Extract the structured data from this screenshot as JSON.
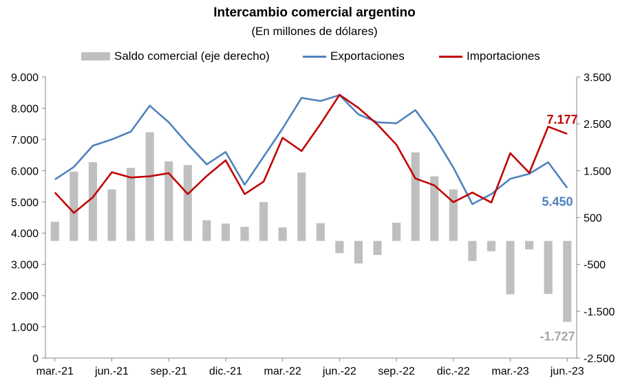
{
  "chart_data": {
    "type": "bar+line",
    "title": "Intercambio comercial argentino",
    "subtitle": "(En millones de dólares)",
    "x_tick_labels": [
      "mar.-21",
      "jun.-21",
      "sep.-21",
      "dic.-21",
      "mar.-22",
      "jun.-22",
      "sep.-22",
      "dic.-22",
      "mar.-23",
      "jun.-23"
    ],
    "months": [
      "mar.-21",
      "abr.-21",
      "may.-21",
      "jun.-21",
      "jul.-21",
      "ago.-21",
      "sep.-21",
      "oct.-21",
      "nov.-21",
      "dic.-21",
      "ene.-22",
      "feb.-22",
      "mar.-22",
      "abr.-22",
      "may.-22",
      "jun.-22",
      "jul.-22",
      "ago.-22",
      "sep.-22",
      "oct.-22",
      "nov.-22",
      "dic.-22",
      "ene.-23",
      "feb.-23",
      "mar.-23",
      "abr.-23",
      "may.-23",
      "jun.-23"
    ],
    "left_axis": {
      "ylim": [
        0,
        9000
      ],
      "ticks": [
        0,
        1000,
        2000,
        3000,
        4000,
        5000,
        6000,
        7000,
        8000,
        9000
      ],
      "tick_labels": [
        "0",
        "1.000",
        "2.000",
        "3.000",
        "4.000",
        "5.000",
        "6.000",
        "7.000",
        "8.000",
        "9.000"
      ]
    },
    "right_axis": {
      "ylim": [
        -2500,
        3500
      ],
      "ticks": [
        -2500,
        -1500,
        -500,
        500,
        1500,
        2500,
        3500
      ],
      "tick_labels": [
        "-2.500",
        "-1.500",
        "-500",
        "500",
        "1.500",
        "2.500",
        "3.500"
      ]
    },
    "series": [
      {
        "name": "Saldo comercial (eje derecho)",
        "type": "bar",
        "axis": "right",
        "color": "#bfbfbf",
        "values": [
          410,
          1480,
          1680,
          1100,
          1560,
          2320,
          1700,
          1620,
          440,
          370,
          300,
          830,
          290,
          1460,
          380,
          -260,
          -480,
          -300,
          390,
          1890,
          1380,
          1100,
          -430,
          -220,
          -1140,
          -180,
          -1130,
          -1727
        ]
      },
      {
        "name": "Exportaciones",
        "type": "line",
        "axis": "left",
        "color": "#4f81bd",
        "values": [
          5720,
          6120,
          6800,
          7000,
          7250,
          8080,
          7550,
          6850,
          6200,
          6600,
          5550,
          6450,
          7350,
          8330,
          8230,
          8420,
          7800,
          7550,
          7520,
          7940,
          7100,
          6100,
          4930,
          5250,
          5740,
          5900,
          6270,
          5450
        ]
      },
      {
        "name": "Importaciones",
        "type": "line",
        "axis": "left",
        "color": "#c00000",
        "values": [
          5300,
          4650,
          5150,
          5950,
          5780,
          5820,
          5920,
          5250,
          5830,
          6330,
          5250,
          5650,
          7050,
          6630,
          7500,
          8430,
          8010,
          7480,
          6830,
          5750,
          5530,
          4990,
          5300,
          4980,
          6560,
          5930,
          7410,
          7177
        ]
      }
    ],
    "data_labels": [
      {
        "series": "Importaciones",
        "text": "7.177",
        "color": "#c00000"
      },
      {
        "series": "Exportaciones",
        "text": "5.450",
        "color": "#4f81bd"
      },
      {
        "series": "Saldo comercial (eje derecho)",
        "text": "-1.727",
        "color": "#a6a6a6"
      }
    ],
    "grid": false,
    "legend_position": "top"
  }
}
